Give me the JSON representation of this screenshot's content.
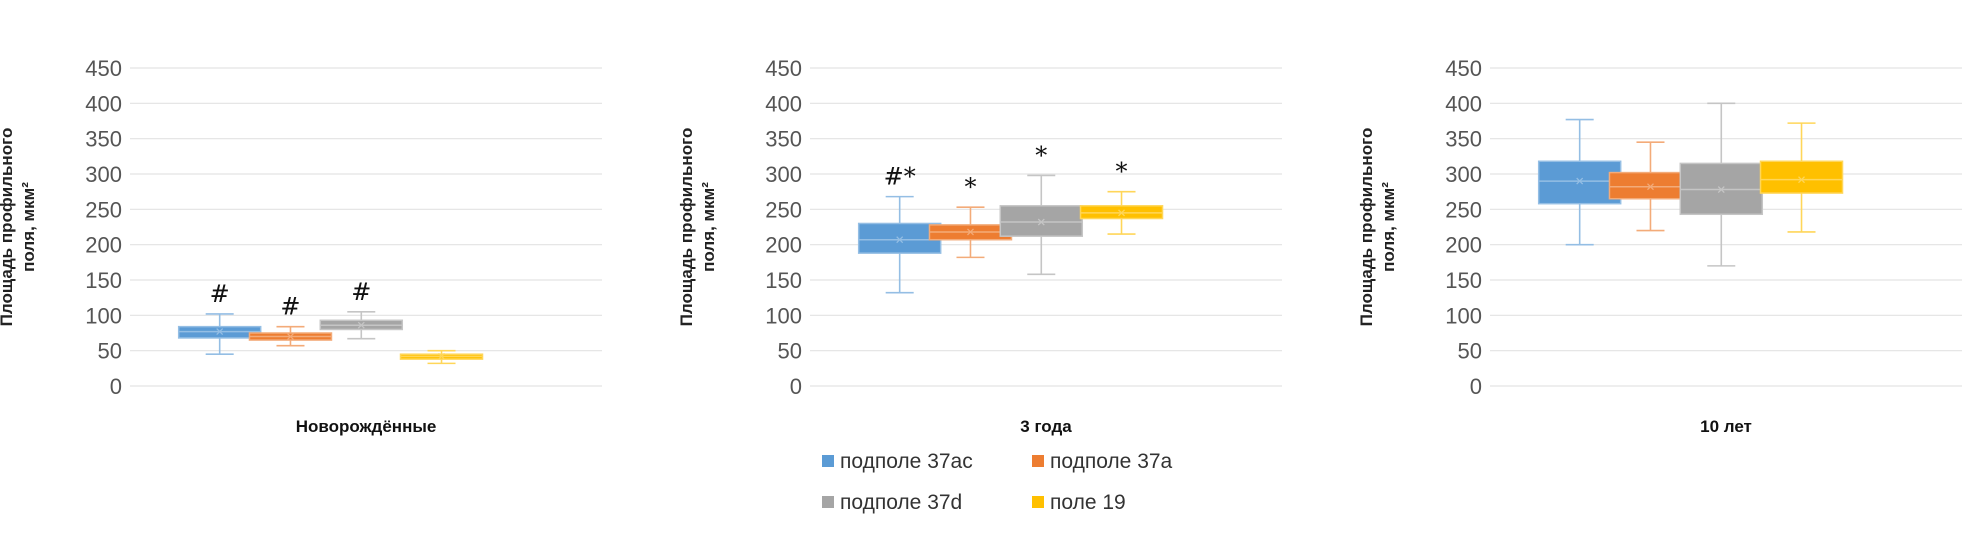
{
  "legend": {
    "items": [
      {
        "label": "подполе 37ac",
        "color": "#5B9BD5"
      },
      {
        "label": "подполе 37a",
        "color": "#ED7D31"
      },
      {
        "label": "подполе 37d",
        "color": "#A5A5A5"
      },
      {
        "label": "поле 19",
        "color": "#FFC000"
      }
    ]
  },
  "chart_data": [
    {
      "type": "boxplot",
      "xlabel": "Новорождённые",
      "ylabel_lines": [
        "Площадь профильного",
        "поля, мкм²"
      ],
      "ylim": [
        0,
        450
      ],
      "yticks": [
        0,
        50,
        100,
        150,
        200,
        250,
        300,
        350,
        400,
        450
      ],
      "grid": true,
      "series": [
        {
          "name": "подполе 37ac",
          "min": 45,
          "q1": 68,
          "median": 77,
          "mean": 77,
          "q3": 84,
          "max": 102,
          "annotation": "#"
        },
        {
          "name": "подполе 37a",
          "min": 57,
          "q1": 65,
          "median": 70,
          "mean": 70,
          "q3": 75,
          "max": 84,
          "annotation": "#"
        },
        {
          "name": "подполе 37d",
          "min": 67,
          "q1": 80,
          "median": 86,
          "mean": 86,
          "q3": 93,
          "max": 105,
          "annotation": "#"
        },
        {
          "name": "поле 19",
          "min": 32,
          "q1": 38,
          "median": 42,
          "mean": 42,
          "q3": 45,
          "max": 50,
          "annotation": ""
        }
      ]
    },
    {
      "type": "boxplot",
      "xlabel": "3 года",
      "ylabel_lines": [
        "Площадь профильного",
        "поля, мкм²"
      ],
      "ylim": [
        0,
        450
      ],
      "yticks": [
        0,
        50,
        100,
        150,
        200,
        250,
        300,
        350,
        400,
        450
      ],
      "grid": true,
      "series": [
        {
          "name": "подполе 37ac",
          "min": 132,
          "q1": 188,
          "median": 207,
          "mean": 207,
          "q3": 230,
          "max": 268,
          "annotation": "#*"
        },
        {
          "name": "подполе 37a",
          "min": 182,
          "q1": 207,
          "median": 218,
          "mean": 218,
          "q3": 228,
          "max": 253,
          "annotation": "*"
        },
        {
          "name": "подполе 37d",
          "min": 158,
          "q1": 212,
          "median": 232,
          "mean": 232,
          "q3": 255,
          "max": 298,
          "annotation": "*"
        },
        {
          "name": "поле 19",
          "min": 215,
          "q1": 237,
          "median": 245,
          "mean": 245,
          "q3": 255,
          "max": 275,
          "annotation": "*"
        }
      ]
    },
    {
      "type": "boxplot",
      "xlabel": "10 лет",
      "ylabel_lines": [
        "Площадь профильного",
        "поля, мкм²"
      ],
      "ylim": [
        0,
        450
      ],
      "yticks": [
        0,
        50,
        100,
        150,
        200,
        250,
        300,
        350,
        400,
        450
      ],
      "grid": true,
      "series": [
        {
          "name": "подполе 37ac",
          "min": 200,
          "q1": 258,
          "median": 290,
          "mean": 290,
          "q3": 318,
          "max": 377,
          "annotation": ""
        },
        {
          "name": "подполе 37a",
          "min": 220,
          "q1": 265,
          "median": 282,
          "mean": 282,
          "q3": 302,
          "max": 345,
          "annotation": ""
        },
        {
          "name": "подполе 37d",
          "min": 170,
          "q1": 243,
          "median": 278,
          "mean": 278,
          "q3": 315,
          "max": 400,
          "annotation": ""
        },
        {
          "name": "поле 19",
          "min": 218,
          "q1": 273,
          "median": 292,
          "mean": 292,
          "q3": 318,
          "max": 372,
          "annotation": ""
        }
      ]
    }
  ]
}
